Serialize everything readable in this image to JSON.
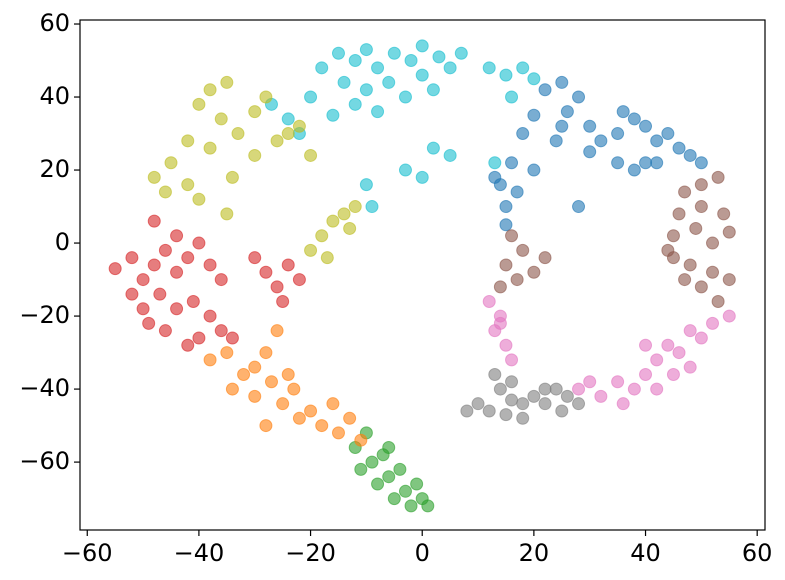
{
  "chart_data": {
    "type": "scatter",
    "xlim": [
      -61.3,
      61.4
    ],
    "ylim": [
      -78.6,
      61.1
    ],
    "xticks": [
      {
        "value": -60,
        "label": "−60"
      },
      {
        "value": -40,
        "label": "−40"
      },
      {
        "value": -20,
        "label": "−20"
      },
      0,
      20,
      40,
      60
    ],
    "yticks": [
      {
        "value": -60,
        "label": "−60"
      },
      {
        "value": -40,
        "label": "−40"
      },
      {
        "value": -20,
        "label": "−20"
      },
      0,
      20,
      40,
      60
    ],
    "grid": false,
    "marker_opacity": 0.6,
    "series": [
      {
        "color": "#17becf",
        "x": [
          -18,
          -15,
          -12,
          -10,
          -8,
          -5,
          -2,
          0,
          3,
          5,
          7,
          -14,
          -10,
          -6,
          -3,
          0,
          2,
          -8,
          -12,
          12,
          15,
          18,
          20,
          16,
          -16,
          -20,
          -22,
          -24,
          2,
          5,
          -3,
          0,
          -10,
          -9,
          13,
          -27
        ],
        "values": [
          48,
          52,
          50,
          53,
          48,
          52,
          50,
          54,
          51,
          48,
          52,
          44,
          42,
          44,
          40,
          46,
          42,
          36,
          38,
          48,
          46,
          48,
          45,
          40,
          35,
          40,
          30,
          34,
          26,
          24,
          20,
          18,
          16,
          10,
          22,
          38
        ]
      },
      {
        "color": "#1f77b4",
        "x": [
          22,
          25,
          28,
          20,
          25,
          30,
          32,
          35,
          38,
          40,
          42,
          44,
          46,
          48,
          50,
          35,
          38,
          42,
          30,
          26,
          18,
          16,
          14,
          15,
          13,
          17,
          15,
          20,
          28,
          36,
          40,
          24
        ],
        "values": [
          42,
          44,
          40,
          35,
          32,
          32,
          28,
          30,
          34,
          32,
          28,
          30,
          26,
          24,
          22,
          22,
          20,
          22,
          25,
          36,
          30,
          22,
          16,
          10,
          18,
          14,
          5,
          20,
          10,
          36,
          22,
          28
        ]
      },
      {
        "color": "#8c564b",
        "x": [
          47,
          50,
          53,
          46,
          50,
          54,
          45,
          49,
          52,
          55,
          45,
          48,
          52,
          55,
          47,
          50,
          53,
          44,
          16,
          18,
          15,
          17,
          20,
          14,
          22
        ],
        "values": [
          14,
          16,
          18,
          8,
          10,
          8,
          2,
          4,
          0,
          3,
          -4,
          -6,
          -8,
          -10,
          -10,
          -12,
          -16,
          -2,
          2,
          -2,
          -6,
          -10,
          -8,
          -12,
          -4
        ]
      },
      {
        "color": "#e377c2",
        "x": [
          12,
          14,
          13,
          15,
          16,
          14,
          55,
          52,
          50,
          48,
          46,
          44,
          42,
          40,
          45,
          38,
          35,
          32,
          30,
          36,
          42,
          48,
          28,
          40
        ],
        "values": [
          -16,
          -20,
          -24,
          -28,
          -32,
          -22,
          -20,
          -22,
          -26,
          -24,
          -30,
          -28,
          -32,
          -36,
          -36,
          -40,
          -38,
          -42,
          -38,
          -44,
          -40,
          -34,
          -40,
          -28
        ]
      },
      {
        "color": "#7f7f7f",
        "x": [
          13,
          14,
          16,
          10,
          12,
          15,
          18,
          20,
          22,
          24,
          26,
          28,
          18,
          22,
          25,
          16,
          8
        ],
        "values": [
          -36,
          -40,
          -38,
          -44,
          -46,
          -47,
          -44,
          -42,
          -44,
          -40,
          -42,
          -44,
          -48,
          -40,
          -46,
          -43,
          -46
        ]
      },
      {
        "color": "#2ca02c",
        "x": [
          -12,
          -10,
          -9,
          -7,
          -6,
          -4,
          -3,
          -1,
          0,
          1,
          -5,
          -8,
          -2,
          -11,
          -6
        ],
        "values": [
          -56,
          -52,
          -60,
          -58,
          -64,
          -62,
          -68,
          -66,
          -70,
          -72,
          -70,
          -66,
          -72,
          -62,
          -56
        ]
      },
      {
        "color": "#ff7f0e",
        "x": [
          -38,
          -35,
          -32,
          -30,
          -28,
          -26,
          -34,
          -30,
          -27,
          -25,
          -23,
          -22,
          -20,
          -18,
          -15,
          -13,
          -16,
          -11,
          -24,
          -28
        ],
        "values": [
          -32,
          -30,
          -36,
          -34,
          -30,
          -24,
          -40,
          -42,
          -38,
          -44,
          -40,
          -48,
          -46,
          -50,
          -52,
          -48,
          -44,
          -54,
          -36,
          -50
        ]
      },
      {
        "color": "#d62728",
        "x": [
          -55,
          -52,
          -50,
          -48,
          -46,
          -44,
          -42,
          -40,
          -38,
          -36,
          -50,
          -47,
          -44,
          -41,
          -38,
          -36,
          -40,
          -46,
          -42,
          -49,
          -52,
          -28,
          -26,
          -24,
          -22,
          -25,
          -30,
          -34,
          -48,
          -44
        ],
        "values": [
          -7,
          -4,
          -10,
          -6,
          -2,
          -8,
          -4,
          0,
          -6,
          -10,
          -18,
          -14,
          -18,
          -16,
          -20,
          -24,
          -26,
          -24,
          -28,
          -22,
          -14,
          -8,
          -12,
          -6,
          -10,
          -16,
          -4,
          -26,
          6,
          2
        ]
      },
      {
        "color": "#bcbd22",
        "x": [
          -45,
          -42,
          -40,
          -38,
          -35,
          -36,
          -33,
          -30,
          -28,
          -26,
          -22,
          -20,
          -38,
          -42,
          -46,
          -48,
          -40,
          -34,
          -30,
          -35,
          -18,
          -16,
          -14,
          -12,
          -20,
          -17,
          -13,
          -24
        ],
        "values": [
          22,
          28,
          38,
          42,
          44,
          34,
          30,
          36,
          40,
          28,
          32,
          24,
          26,
          16,
          14,
          18,
          12,
          18,
          24,
          8,
          2,
          6,
          8,
          10,
          -2,
          -4,
          4,
          30
        ]
      }
    ]
  }
}
